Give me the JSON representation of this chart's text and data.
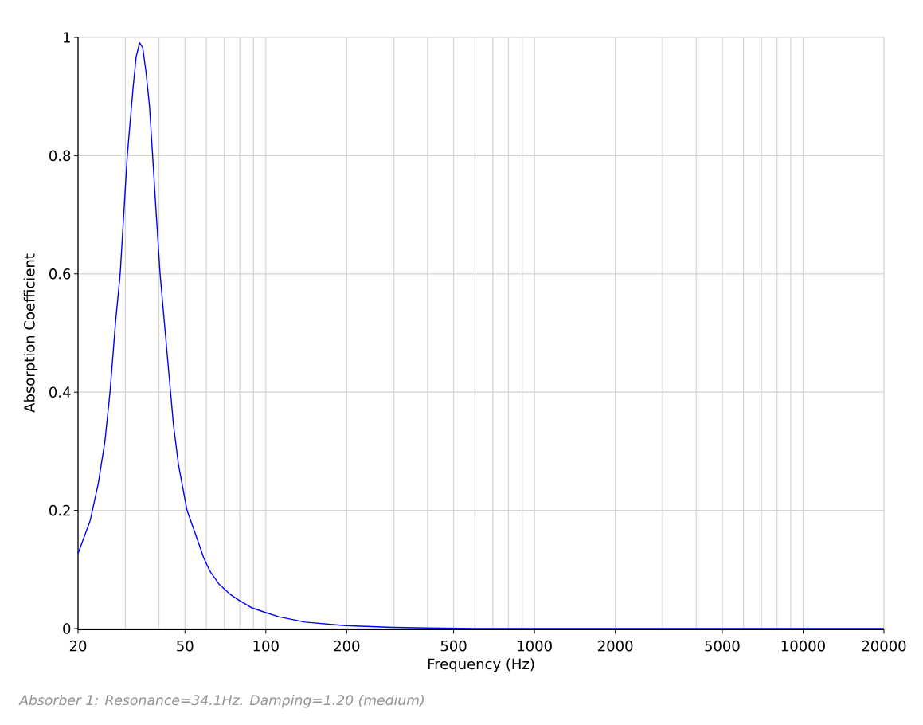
{
  "chart_data": {
    "type": "line",
    "xlabel": "Frequency (Hz)",
    "ylabel": "Absorption Coefficient",
    "annotations": [
      "Absorber 1: Resonance=34.1Hz. Damping=1.20 (medium)"
    ],
    "log": "x",
    "grid": true,
    "marker": "none",
    "line_style": "solid",
    "x": [
      20,
      22.2,
      23.8,
      25.2,
      26.3,
      27.6,
      28.7,
      30.5,
      32,
      32.9,
      33.9,
      34.8,
      35.8,
      36.9,
      37.9,
      39,
      40.4,
      41.8,
      44.2,
      45.3,
      47.3,
      50.9,
      54.2,
      58.7,
      61.8,
      67,
      74.1,
      79.4,
      88.9,
      100,
      111.7,
      140,
      197,
      297,
      400,
      600,
      1000,
      2000,
      5000,
      10000,
      20000
    ],
    "series": [
      {
        "color": "#0000ff",
        "values": [
          0.127,
          0.183,
          0.246,
          0.318,
          0.4,
          0.52,
          0.6,
          0.8,
          0.911,
          0.967,
          0.991,
          0.983,
          0.942,
          0.884,
          0.8,
          0.709,
          0.6,
          0.524,
          0.4,
          0.345,
          0.277,
          0.2,
          0.165,
          0.12,
          0.098,
          0.075,
          0.057,
          0.048,
          0.035,
          0.027,
          0.02,
          0.011,
          0.005,
          0.002,
          0.001,
          0,
          0,
          0,
          0,
          0,
          0
        ]
      }
    ],
    "xlim": [
      20,
      20000
    ],
    "ylim": [
      0,
      1
    ],
    "xticks": [
      20,
      50,
      100,
      200,
      500,
      1000,
      2000,
      5000,
      10000,
      20000
    ],
    "yticks": [
      0,
      0.2,
      0.4,
      0.6,
      0.8,
      1
    ]
  }
}
